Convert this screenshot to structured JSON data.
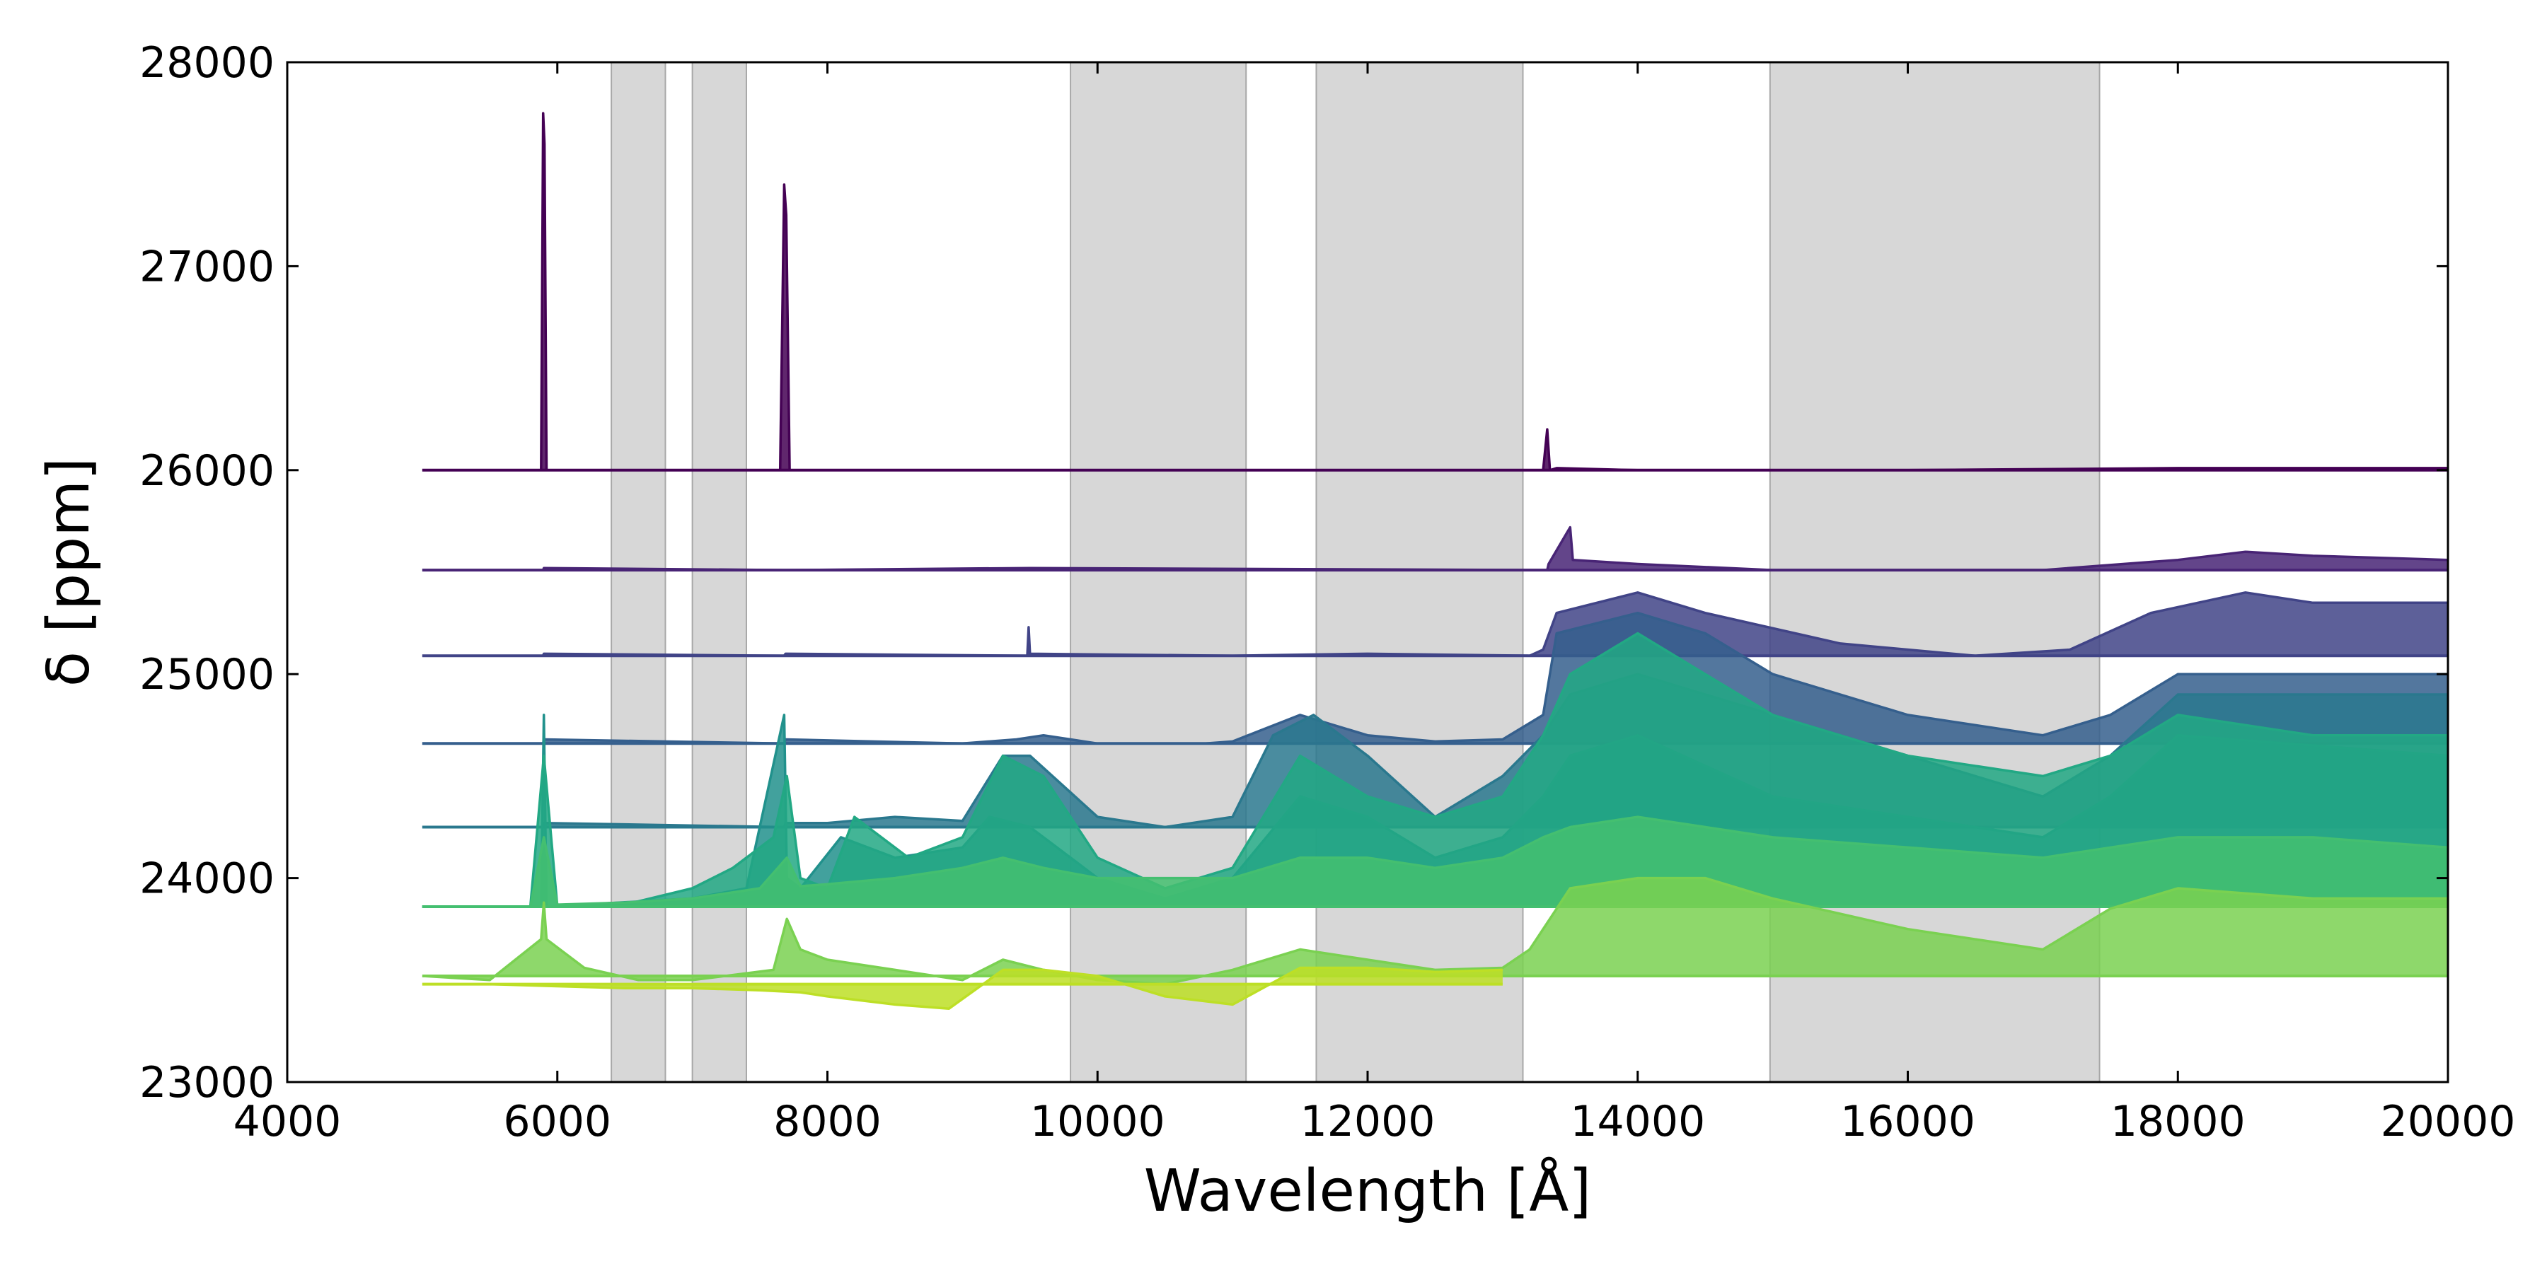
{
  "chart_data": {
    "type": "line",
    "xlabel": "Wavelength [Å]",
    "ylabel": "δ [ppm]",
    "xlim": [
      4000,
      20000
    ],
    "ylim": [
      23000,
      28000
    ],
    "xticks": [
      "4000",
      "6000",
      "8000",
      "10000",
      "12000",
      "14000",
      "16000",
      "18000",
      "20000"
    ],
    "yticks": [
      "23000",
      "24000",
      "25000",
      "26000",
      "27000",
      "28000"
    ],
    "grid": false,
    "legend": "none",
    "shaded_regions": [
      [
        6400,
        6800
      ],
      [
        7000,
        7400
      ],
      [
        9800,
        11100
      ],
      [
        11620,
        13150
      ],
      [
        14980,
        17420
      ]
    ],
    "series": [
      {
        "color": "#440154",
        "baseline": 26000,
        "x": [
          5000,
          5880,
          5895,
          5905,
          5920,
          7650,
          7680,
          7695,
          7720,
          13300,
          13330,
          13350,
          13400,
          14000,
          16000,
          18000,
          20000
        ],
        "y": [
          26000,
          26000,
          27750,
          27600,
          26000,
          26000,
          27400,
          27250,
          26000,
          26000,
          26200,
          26000,
          26010,
          26000,
          26000,
          26010,
          26010
        ]
      },
      {
        "color": "#482475",
        "baseline": 25510,
        "x": [
          5000,
          5895,
          5900,
          7680,
          7690,
          9500,
          13330,
          13340,
          13500,
          13520,
          14000,
          15000,
          17000,
          18000,
          18500,
          19000,
          20000
        ],
        "y": [
          25510,
          25510,
          25520,
          25510,
          25510,
          25520,
          25510,
          25540,
          25720,
          25560,
          25540,
          25510,
          25510,
          25560,
          25600,
          25580,
          25560
        ]
      },
      {
        "color": "#414487",
        "baseline": 25090,
        "x": [
          5000,
          5895,
          5900,
          7680,
          7690,
          9480,
          9490,
          9500,
          11000,
          12000,
          13200,
          13300,
          13400,
          14000,
          14500,
          15500,
          16500,
          17200,
          17800,
          18500,
          19000,
          20000
        ],
        "y": [
          25090,
          25090,
          25100,
          25090,
          25100,
          25090,
          25230,
          25100,
          25090,
          25100,
          25090,
          25120,
          25300,
          25400,
          25300,
          25150,
          25090,
          25120,
          25300,
          25400,
          25350,
          25350
        ]
      },
      {
        "color": "#355f8d",
        "baseline": 24660,
        "x": [
          5000,
          5895,
          5900,
          7680,
          7690,
          9000,
          9400,
          9600,
          10000,
          10800,
          11000,
          11500,
          12000,
          12500,
          13000,
          13300,
          13400,
          14000,
          14500,
          15000,
          16000,
          17000,
          17500,
          18000,
          20000
        ],
        "y": [
          24660,
          24660,
          24680,
          24660,
          24680,
          24660,
          24680,
          24700,
          24660,
          24660,
          24670,
          24800,
          24700,
          24670,
          24680,
          24800,
          25200,
          25300,
          25200,
          25000,
          24800,
          24700,
          24800,
          25000,
          25000
        ]
      },
      {
        "color": "#2a788e",
        "baseline": 24250,
        "x": [
          5000,
          5895,
          5900,
          7680,
          7690,
          8000,
          8500,
          9000,
          9300,
          9500,
          10000,
          10500,
          11000,
          11300,
          11600,
          12000,
          12500,
          13000,
          13300,
          13500,
          14000,
          14500,
          15000,
          16000,
          17000,
          17500,
          18000,
          20000
        ],
        "y": [
          24250,
          24250,
          24270,
          24250,
          24270,
          24270,
          24300,
          24280,
          24600,
          24600,
          24300,
          24250,
          24300,
          24700,
          24800,
          24600,
          24300,
          24500,
          24700,
          24900,
          25000,
          24900,
          24800,
          24600,
          24400,
          24600,
          24900,
          24900
        ]
      },
      {
        "color": "#21918c",
        "baseline": 23860,
        "x": [
          5000,
          5880,
          5900,
          5920,
          7000,
          7400,
          7680,
          7700,
          7800,
          8100,
          8500,
          9000,
          9200,
          9500,
          10000,
          10500,
          11000,
          11500,
          12000,
          12500,
          13000,
          13300,
          13500,
          14000,
          15000,
          16000,
          17000,
          17500,
          18000,
          20000
        ],
        "y": [
          23860,
          23860,
          24800,
          23860,
          23900,
          23950,
          24800,
          24000,
          23950,
          24200,
          24100,
          24150,
          24300,
          24250,
          24000,
          23900,
          24000,
          24400,
          24300,
          24100,
          24200,
          24400,
          24600,
          24700,
          24400,
          24300,
          24200,
          24400,
          24700,
          24600
        ]
      },
      {
        "color": "#22a884",
        "baseline": 23860,
        "x": [
          5000,
          5800,
          5900,
          6000,
          6500,
          7000,
          7300,
          7600,
          7700,
          7800,
          8000,
          8200,
          8600,
          9000,
          9300,
          9600,
          10000,
          10500,
          11000,
          11500,
          12000,
          12500,
          13000,
          13300,
          13500,
          14000,
          14500,
          15000,
          16000,
          17000,
          17500,
          18000,
          19000,
          20000
        ],
        "y": [
          23860,
          23860,
          24600,
          23860,
          23870,
          23950,
          24050,
          24200,
          24500,
          24000,
          23950,
          24300,
          24100,
          24200,
          24600,
          24500,
          24100,
          23950,
          24050,
          24600,
          24400,
          24300,
          24400,
          24700,
          25000,
          25200,
          25000,
          24800,
          24600,
          24500,
          24600,
          24800,
          24700,
          24700
        ]
      },
      {
        "color": "#44bf70",
        "baseline": 23860,
        "x": [
          5000,
          5800,
          5900,
          6000,
          6500,
          7000,
          7500,
          7700,
          7800,
          8000,
          8500,
          9000,
          9300,
          9600,
          10000,
          11000,
          11500,
          12000,
          12500,
          13000,
          13300,
          13500,
          14000,
          15000,
          16000,
          17000,
          18000,
          19000,
          20000
        ],
        "y": [
          23860,
          23860,
          24200,
          23870,
          23880,
          23900,
          23950,
          24100,
          23960,
          23970,
          24000,
          24050,
          24100,
          24050,
          24000,
          24000,
          24100,
          24100,
          24050,
          24100,
          24200,
          24250,
          24300,
          24200,
          24150,
          24100,
          24200,
          24200,
          24150
        ]
      },
      {
        "color": "#7ad151",
        "baseline": 23520,
        "x": [
          5000,
          5500,
          5880,
          5900,
          5920,
          6200,
          6600,
          7000,
          7600,
          7700,
          7800,
          8000,
          8500,
          9000,
          9300,
          9600,
          10000,
          10500,
          11000,
          11500,
          12000,
          12500,
          13000,
          13200,
          13500,
          14000,
          14500,
          15000,
          16000,
          16500,
          17000,
          17500,
          18000,
          19000,
          20000
        ],
        "y": [
          23520,
          23500,
          23700,
          23880,
          23700,
          23560,
          23500,
          23500,
          23550,
          23800,
          23650,
          23600,
          23550,
          23500,
          23600,
          23550,
          23500,
          23480,
          23550,
          23650,
          23600,
          23550,
          23560,
          23650,
          23950,
          24000,
          24000,
          23900,
          23750,
          23700,
          23650,
          23850,
          23950,
          23900,
          23900
        ]
      },
      {
        "color": "#bddf26",
        "baseline": 23480,
        "x": [
          5000,
          5500,
          6000,
          6500,
          7000,
          7500,
          7800,
          8000,
          8500,
          8900,
          9300,
          9600,
          10000,
          10500,
          11000,
          11500,
          12000,
          12500,
          13000
        ],
        "y": [
          23480,
          23480,
          23470,
          23460,
          23460,
          23450,
          23440,
          23420,
          23380,
          23360,
          23550,
          23550,
          23520,
          23420,
          23380,
          23560,
          23560,
          23540,
          23550
        ]
      }
    ]
  }
}
